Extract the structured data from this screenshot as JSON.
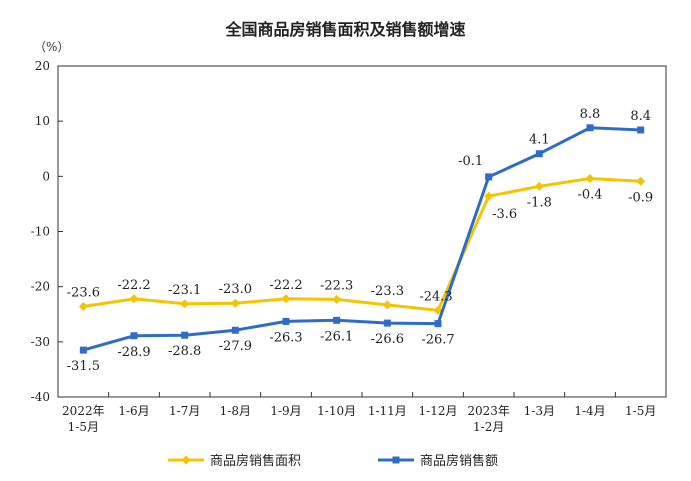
{
  "chart_data": {
    "type": "line",
    "title": "全国商品房销售面积及销售额增速",
    "y_unit": "（%）",
    "ylim": [
      -40,
      20
    ],
    "yticks": [
      20,
      10,
      0,
      -10,
      -20,
      -30,
      -40
    ],
    "categories": [
      [
        "2022年",
        "1-5月"
      ],
      [
        "1-6月"
      ],
      [
        "1-7月"
      ],
      [
        "1-8月"
      ],
      [
        "1-9月"
      ],
      [
        "1-10月"
      ],
      [
        "1-11月"
      ],
      [
        "1-12月"
      ],
      [
        "2023年",
        "1-2月"
      ],
      [
        "1-3月"
      ],
      [
        "1-4月"
      ],
      [
        "1-5月"
      ]
    ],
    "series": [
      {
        "name": "商品房销售面积",
        "color": "#f5c400",
        "marker": "diamond",
        "values": [
          -23.6,
          -22.2,
          -23.1,
          -23.0,
          -22.2,
          -22.3,
          -23.3,
          -24.3,
          -3.6,
          -1.8,
          -0.4,
          -0.9
        ],
        "labels": [
          "-23.6",
          "-22.2",
          "-23.1",
          "-23.0",
          "-22.2",
          "-22.3",
          "-23.3",
          "-24.3",
          "-3.6",
          "-1.8",
          "-0.4",
          "-0.9"
        ]
      },
      {
        "name": "商品房销售额",
        "color": "#2e6cc7",
        "marker": "square",
        "values": [
          -31.5,
          -28.9,
          -28.8,
          -27.9,
          -26.3,
          -26.1,
          -26.6,
          -26.7,
          -0.1,
          4.1,
          8.8,
          8.4
        ],
        "labels": [
          "-31.5",
          "-28.9",
          "-28.8",
          "-27.9",
          "-26.3",
          "-26.1",
          "-26.6",
          "-26.7",
          "-0.1",
          "4.1",
          "8.8",
          "8.4"
        ]
      }
    ],
    "legend": "bottom",
    "grid": false
  }
}
